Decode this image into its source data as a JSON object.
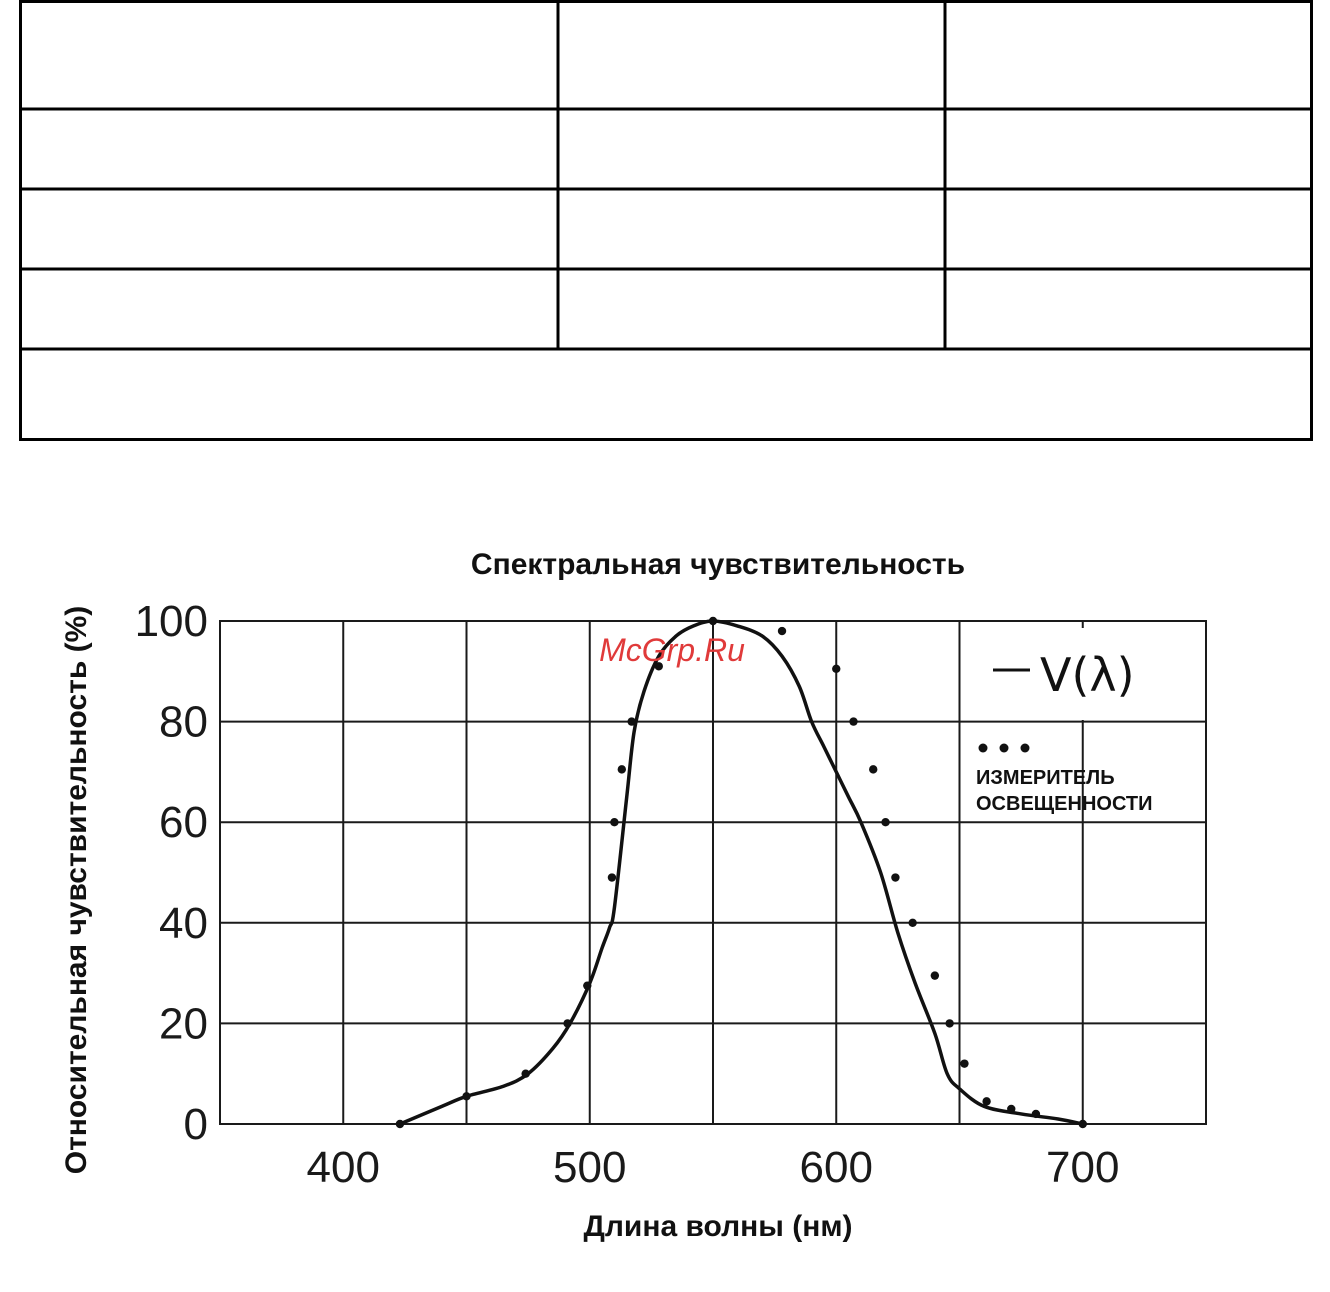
{
  "watermark": "McGrp.Ru",
  "chart_data": {
    "type": "line",
    "title": "Спектральная чувствительность",
    "xlabel": "Длина волны (нм)",
    "ylabel": "Относительная чувствительность (%)",
    "xlim": [
      350,
      750
    ],
    "ylim": [
      0,
      100
    ],
    "x_ticks": [
      400,
      500,
      600,
      700
    ],
    "y_ticks": [
      0,
      20,
      40,
      60,
      80,
      100
    ],
    "grid": true,
    "legend_placement": "top-right",
    "series": [
      {
        "name": "V(λ)",
        "legend_label": "V(λ)",
        "style": "line",
        "x": [
          423,
          440,
          450,
          465,
          475,
          485,
          492,
          500,
          505,
          508,
          510,
          515,
          518,
          522,
          528,
          535,
          542,
          550,
          560,
          570,
          578,
          585,
          590,
          595,
          600,
          605,
          610,
          618,
          625,
          632,
          640,
          645,
          650,
          660,
          675,
          690,
          700
        ],
        "y": [
          0,
          3.5,
          5.5,
          7.5,
          10,
          15,
          20,
          28,
          35,
          39,
          43,
          65,
          78,
          86,
          93,
          97,
          99,
          100,
          99,
          97,
          93,
          87,
          80,
          75,
          70,
          65,
          60,
          50,
          38,
          28,
          18,
          10,
          7,
          3.5,
          2,
          1,
          0
        ]
      },
      {
        "name": "измеритель освещенности",
        "legend_label": "ИЗМЕРИТЕЛЬ ОСВЕЩЕННОСТИ",
        "style": "dots",
        "x": [
          423,
          450,
          474,
          491,
          499,
          509,
          510,
          513,
          517,
          528,
          550,
          578,
          600,
          607,
          615,
          620,
          624,
          631,
          640,
          646,
          652,
          661,
          671,
          681,
          700
        ],
        "y": [
          0,
          5.5,
          10,
          20,
          27.5,
          49,
          60,
          70.5,
          80,
          91,
          100,
          98,
          90.5,
          80,
          70.5,
          60,
          49,
          40,
          29.5,
          20,
          12,
          4.5,
          3,
          2,
          0
        ]
      }
    ]
  },
  "colors": {
    "line": "#111111",
    "grid": "#1a1a1a",
    "watermark": "#e03a3a"
  }
}
